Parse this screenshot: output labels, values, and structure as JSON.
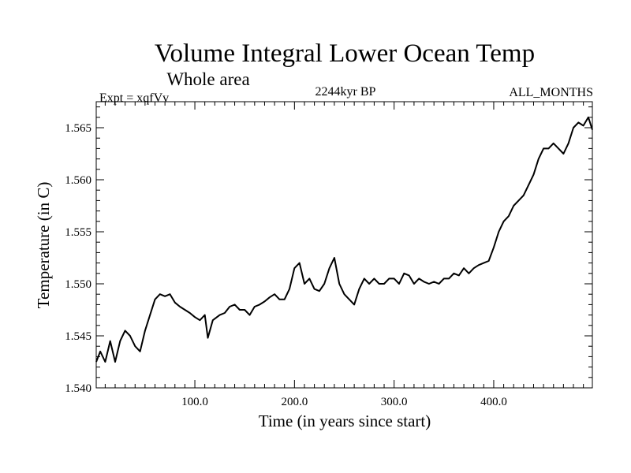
{
  "chart_data": {
    "type": "line",
    "title": "Volume Integral Lower Ocean Temp",
    "subtitle": "Whole area",
    "expt_label": "Expt = xqfVv",
    "period_label": "2244kyr BP",
    "months_label": "ALL_MONTHS",
    "xlabel": "Time (in years since start)",
    "ylabel": "Temperature (in C)",
    "xlim": [
      1,
      499
    ],
    "ylim": [
      1.54,
      1.5675
    ],
    "x_ticks": [
      100,
      200,
      300,
      400
    ],
    "x_tick_labels": [
      "100.0",
      "200.0",
      "300.0",
      "400.0"
    ],
    "y_ticks": [
      1.54,
      1.545,
      1.55,
      1.555,
      1.56,
      1.565
    ],
    "y_tick_labels": [
      "1.540",
      "1.545",
      "1.550",
      "1.555",
      "1.560",
      "1.565"
    ],
    "series": [
      {
        "name": "Volume integral lower ocean temperature",
        "color": "#000000",
        "x": [
          1,
          5,
          10,
          15,
          20,
          25,
          30,
          35,
          40,
          45,
          50,
          55,
          60,
          65,
          70,
          75,
          80,
          85,
          90,
          95,
          100,
          105,
          110,
          113,
          118,
          125,
          130,
          135,
          140,
          145,
          150,
          155,
          160,
          165,
          170,
          175,
          180,
          185,
          190,
          195,
          200,
          205,
          210,
          215,
          220,
          225,
          230,
          235,
          240,
          245,
          250,
          255,
          260,
          265,
          270,
          275,
          280,
          285,
          290,
          295,
          300,
          305,
          310,
          315,
          320,
          325,
          330,
          335,
          340,
          345,
          350,
          355,
          360,
          365,
          370,
          375,
          380,
          385,
          390,
          395,
          400,
          405,
          410,
          415,
          420,
          425,
          430,
          435,
          440,
          445,
          450,
          455,
          460,
          465,
          470,
          475,
          480,
          485,
          490,
          495,
          499
        ],
        "y": [
          1.5425,
          1.5435,
          1.5425,
          1.5445,
          1.5425,
          1.5445,
          1.5455,
          1.545,
          1.544,
          1.5435,
          1.5455,
          1.547,
          1.5485,
          1.549,
          1.5488,
          1.549,
          1.5482,
          1.5478,
          1.5475,
          1.5472,
          1.5468,
          1.5465,
          1.547,
          1.5448,
          1.5465,
          1.547,
          1.5472,
          1.5478,
          1.548,
          1.5475,
          1.5475,
          1.547,
          1.5478,
          1.548,
          1.5483,
          1.5487,
          1.549,
          1.5485,
          1.5485,
          1.5495,
          1.5515,
          1.552,
          1.55,
          1.5505,
          1.5495,
          1.5493,
          1.55,
          1.5515,
          1.5525,
          1.55,
          1.549,
          1.5485,
          1.548,
          1.5495,
          1.5505,
          1.55,
          1.5505,
          1.55,
          1.55,
          1.5505,
          1.5505,
          1.55,
          1.551,
          1.5508,
          1.55,
          1.5505,
          1.5502,
          1.55,
          1.5502,
          1.55,
          1.5505,
          1.5505,
          1.551,
          1.5508,
          1.5515,
          1.551,
          1.5515,
          1.5518,
          1.552,
          1.5522,
          1.5535,
          1.555,
          1.556,
          1.5565,
          1.5575,
          1.558,
          1.5585,
          1.5595,
          1.5605,
          1.562,
          1.563,
          1.563,
          1.5635,
          1.563,
          1.5625,
          1.5635,
          1.565,
          1.5655,
          1.5652,
          1.566,
          1.5648
        ]
      }
    ]
  }
}
